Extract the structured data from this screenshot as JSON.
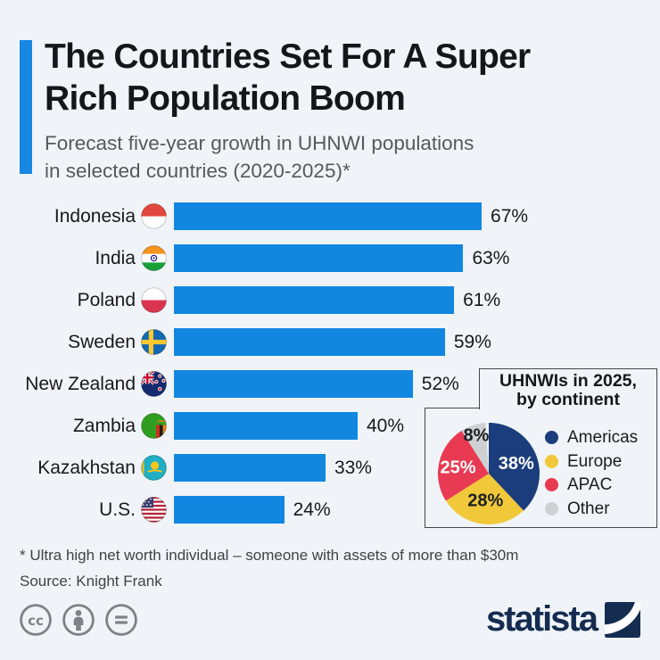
{
  "page": {
    "background": "#f0f4f8"
  },
  "header": {
    "accent_color": "#1787e2",
    "title_line1": "The Countries Set For A Super",
    "title_line2": "Rich Population Boom",
    "subtitle_line1": "Forecast five-year growth in UHNWI populations",
    "subtitle_line2": "in selected countries (2020-2025)*"
  },
  "chart_data": [
    {
      "type": "bar",
      "orientation": "horizontal",
      "title": "Forecast five-year growth in UHNWI populations in selected countries (2020-2025)",
      "categories": [
        "Indonesia",
        "India",
        "Poland",
        "Sweden",
        "New Zealand",
        "Zambia",
        "Kazakhstan",
        "U.S."
      ],
      "values": [
        67,
        63,
        61,
        59,
        52,
        40,
        33,
        24
      ],
      "value_labels": [
        "67%",
        "63%",
        "61%",
        "59%",
        "52%",
        "40%",
        "33%",
        "24%"
      ],
      "bar_color": "#1187e0",
      "xlim": [
        0,
        67
      ],
      "grid": false,
      "flag_icons": [
        "flag-indonesia",
        "flag-india",
        "flag-poland",
        "flag-sweden",
        "flag-new-zealand",
        "flag-zambia",
        "flag-kazakhstan",
        "flag-us"
      ]
    },
    {
      "type": "pie",
      "title_line1": "UHNWIs in 2025,",
      "title_line2": "by continent",
      "legend_position": "right",
      "start_angle_deg": 0,
      "direction": "clockwise",
      "series": [
        {
          "name": "Americas",
          "value": 38,
          "label": "38%",
          "color": "#1b3d7c",
          "label_color": "#ffffff"
        },
        {
          "name": "Europe",
          "value": 28,
          "label": "28%",
          "color": "#f0c83a",
          "label_color": "#1c1f22"
        },
        {
          "name": "APAC",
          "value": 25,
          "label": "25%",
          "color": "#e83a52",
          "label_color": "#ffffff"
        },
        {
          "name": "Other",
          "value": 8,
          "label": "8%",
          "color": "#cdd1d4",
          "label_color": "#1c1f22"
        }
      ]
    }
  ],
  "footnote": {
    "line1": "* Ultra high net worth individual – someone with assets of more than $30m",
    "line2": "Source: Knight Frank"
  },
  "footer": {
    "brand": "statista",
    "brand_color": "#142c50",
    "license_icons": [
      "creative-commons",
      "attribution",
      "no-derivatives"
    ]
  }
}
